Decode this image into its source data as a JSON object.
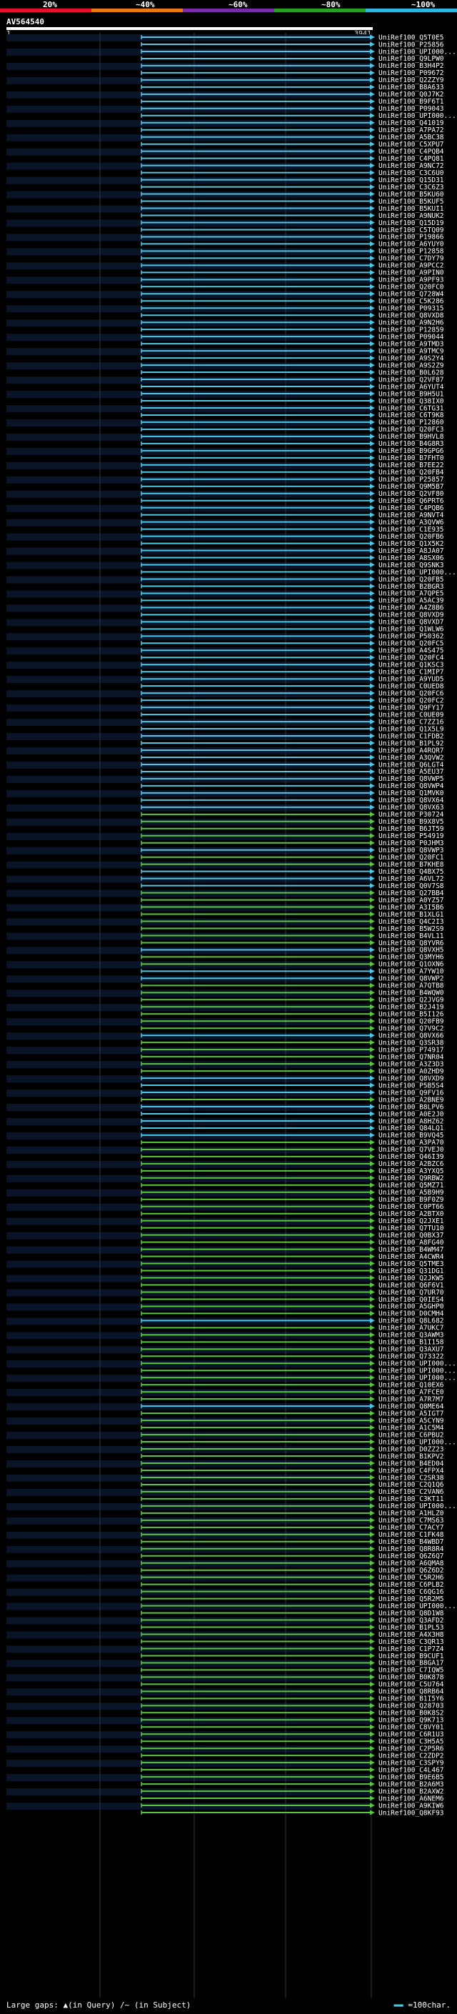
{
  "legend": {
    "items": [
      {
        "label": "20%",
        "color": "#e8102a"
      },
      {
        "label": "~40%",
        "color": "#e87a10"
      },
      {
        "label": "~60%",
        "color": "#7a2ba8"
      },
      {
        "label": "~80%",
        "color": "#28a020"
      },
      {
        "label": "~100%",
        "color": "#2ab8e0"
      }
    ]
  },
  "query": {
    "title": "AV564540",
    "start": "1",
    "end": "3941"
  },
  "footer": {
    "left_label": "Large gaps:",
    "in_query": "(in Query)",
    "in_subject": "(in Subject)",
    "scale_label": "=100char."
  },
  "colors": {
    "cyan": "#4cc9e6",
    "green": "#5ac83c",
    "grid": "#2a3a4a"
  },
  "hits": [
    {
      "label": "UniRef100_Q5T0E5",
      "color": "cyan"
    },
    {
      "label": "UniRef100_P25856",
      "color": "cyan"
    },
    {
      "label": "UniRef100_UPI000...",
      "color": "cyan"
    },
    {
      "label": "UniRef100_Q9LPW0",
      "color": "cyan"
    },
    {
      "label": "UniRef100_B3H4P2",
      "color": "cyan"
    },
    {
      "label": "UniRef100_P09672",
      "color": "cyan"
    },
    {
      "label": "UniRef100_Q2ZZY9",
      "color": "cyan"
    },
    {
      "label": "UniRef100_B8A633",
      "color": "cyan"
    },
    {
      "label": "UniRef100_Q0J7K2",
      "color": "cyan"
    },
    {
      "label": "UniRef100_B9F6T1",
      "color": "cyan"
    },
    {
      "label": "UniRef100_P09043",
      "color": "cyan"
    },
    {
      "label": "UniRef100_UPI000...",
      "color": "cyan"
    },
    {
      "label": "UniRef100_Q41019",
      "color": "cyan"
    },
    {
      "label": "UniRef100_A7PA72",
      "color": "cyan"
    },
    {
      "label": "UniRef100_A5BC38",
      "color": "cyan"
    },
    {
      "label": "UniRef100_C5XPU7",
      "color": "cyan"
    },
    {
      "label": "UniRef100_C4PQB4",
      "color": "cyan"
    },
    {
      "label": "UniRef100_C4PQ81",
      "color": "cyan"
    },
    {
      "label": "UniRef100_A9NC72",
      "color": "cyan"
    },
    {
      "label": "UniRef100_C3C6U0",
      "color": "cyan"
    },
    {
      "label": "UniRef100_Q15D31",
      "color": "cyan"
    },
    {
      "label": "UniRef100_C3C6Z3",
      "color": "cyan"
    },
    {
      "label": "UniRef100_B5KU60",
      "color": "cyan"
    },
    {
      "label": "UniRef100_B5KUF5",
      "color": "cyan"
    },
    {
      "label": "UniRef100_B5KUI1",
      "color": "cyan"
    },
    {
      "label": "UniRef100_A9NUK2",
      "color": "cyan"
    },
    {
      "label": "UniRef100_Q15D19",
      "color": "cyan"
    },
    {
      "label": "UniRef100_C5TQ09",
      "color": "cyan"
    },
    {
      "label": "UniRef100_P19866",
      "color": "cyan"
    },
    {
      "label": "UniRef100_A6YUY0",
      "color": "cyan"
    },
    {
      "label": "UniRef100_P12858",
      "color": "cyan"
    },
    {
      "label": "UniRef100_C7DY79",
      "color": "cyan"
    },
    {
      "label": "UniRef100_A9PCC2",
      "color": "cyan"
    },
    {
      "label": "UniRef100_A9PIN0",
      "color": "cyan"
    },
    {
      "label": "UniRef100_A9PF93",
      "color": "cyan"
    },
    {
      "label": "UniRef100_Q20FC0",
      "color": "cyan"
    },
    {
      "label": "UniRef100_Q728W4",
      "color": "cyan"
    },
    {
      "label": "UniRef100_C5K286",
      "color": "cyan"
    },
    {
      "label": "UniRef100_P09315",
      "color": "cyan"
    },
    {
      "label": "UniRef100_Q8VXD8",
      "color": "cyan"
    },
    {
      "label": "UniRef100_A9N2H6",
      "color": "cyan"
    },
    {
      "label": "UniRef100_P12859",
      "color": "cyan"
    },
    {
      "label": "UniRef100_P09044",
      "color": "cyan"
    },
    {
      "label": "UniRef100_A9TMD3",
      "color": "cyan"
    },
    {
      "label": "UniRef100_A9TMC9",
      "color": "cyan"
    },
    {
      "label": "UniRef100_A9S2Y4",
      "color": "cyan"
    },
    {
      "label": "UniRef100_A9S2Z9",
      "color": "cyan"
    },
    {
      "label": "UniRef100_B0L628",
      "color": "cyan"
    },
    {
      "label": "UniRef100_Q2VF87",
      "color": "cyan"
    },
    {
      "label": "UniRef100_A6YUT4",
      "color": "cyan"
    },
    {
      "label": "UniRef100_B9H5U1",
      "color": "cyan"
    },
    {
      "label": "UniRef100_Q38IX0",
      "color": "cyan"
    },
    {
      "label": "UniRef100_C6TG31",
      "color": "cyan"
    },
    {
      "label": "UniRef100_C6T9K8",
      "color": "cyan"
    },
    {
      "label": "UniRef100_P12860",
      "color": "cyan"
    },
    {
      "label": "UniRef100_Q20FC3",
      "color": "cyan"
    },
    {
      "label": "UniRef100_B9HVL8",
      "color": "cyan"
    },
    {
      "label": "UniRef100_B4G8R3",
      "color": "cyan"
    },
    {
      "label": "UniRef100_B9GPG6",
      "color": "cyan"
    },
    {
      "label": "UniRef100_B7FHT0",
      "color": "cyan"
    },
    {
      "label": "UniRef100_B7EE22",
      "color": "cyan"
    },
    {
      "label": "UniRef100_Q20FB4",
      "color": "cyan"
    },
    {
      "label": "UniRef100_P25857",
      "color": "cyan"
    },
    {
      "label": "UniRef100_Q9M5B7",
      "color": "cyan"
    },
    {
      "label": "UniRef100_Q2VF80",
      "color": "cyan"
    },
    {
      "label": "UniRef100_Q6PRT6",
      "color": "cyan"
    },
    {
      "label": "UniRef100_C4PQB6",
      "color": "cyan"
    },
    {
      "label": "UniRef100_A9NVT4",
      "color": "cyan"
    },
    {
      "label": "UniRef100_A3QVW6",
      "color": "cyan"
    },
    {
      "label": "UniRef100_C1E935",
      "color": "cyan"
    },
    {
      "label": "UniRef100_Q20FB6",
      "color": "cyan"
    },
    {
      "label": "UniRef100_Q1X5K2",
      "color": "cyan"
    },
    {
      "label": "UniRef100_A8JA07",
      "color": "cyan"
    },
    {
      "label": "UniRef100_A8SX06",
      "color": "cyan"
    },
    {
      "label": "UniRef100_Q9SNK3",
      "color": "cyan"
    },
    {
      "label": "UniRef100_UPI000...",
      "color": "cyan"
    },
    {
      "label": "UniRef100_Q20FB5",
      "color": "cyan"
    },
    {
      "label": "UniRef100_B2BGR3",
      "color": "cyan"
    },
    {
      "label": "UniRef100_A7QPE5",
      "color": "cyan"
    },
    {
      "label": "UniRef100_A5AC39",
      "color": "cyan"
    },
    {
      "label": "UniRef100_A4Z8B6",
      "color": "cyan"
    },
    {
      "label": "UniRef100_Q8VXD9",
      "color": "cyan"
    },
    {
      "label": "UniRef100_Q8VXD7",
      "color": "cyan"
    },
    {
      "label": "UniRef100_Q1WLW6",
      "color": "cyan"
    },
    {
      "label": "UniRef100_P50362",
      "color": "cyan"
    },
    {
      "label": "UniRef100_Q20FC5",
      "color": "cyan"
    },
    {
      "label": "UniRef100_A4S475",
      "color": "cyan"
    },
    {
      "label": "UniRef100_Q20FC4",
      "color": "cyan"
    },
    {
      "label": "UniRef100_Q1KSC3",
      "color": "cyan"
    },
    {
      "label": "UniRef100_C1MIP7",
      "color": "cyan"
    },
    {
      "label": "UniRef100_A9YUD5",
      "color": "cyan"
    },
    {
      "label": "UniRef100_C0UED8",
      "color": "cyan"
    },
    {
      "label": "UniRef100_Q20FC6",
      "color": "cyan"
    },
    {
      "label": "UniRef100_Q20FC2",
      "color": "cyan"
    },
    {
      "label": "UniRef100_Q9FY17",
      "color": "cyan"
    },
    {
      "label": "UniRef100_C0UE09",
      "color": "cyan"
    },
    {
      "label": "UniRef100_C7ZZ16",
      "color": "cyan"
    },
    {
      "label": "UniRef100_Q1X5L9",
      "color": "cyan"
    },
    {
      "label": "UniRef100_C1FDB2",
      "color": "cyan"
    },
    {
      "label": "UniRef100_B1PL92",
      "color": "cyan"
    },
    {
      "label": "UniRef100_A4RQR7",
      "color": "cyan"
    },
    {
      "label": "UniRef100_A3QVW2",
      "color": "cyan"
    },
    {
      "label": "UniRef100_Q6LGT4",
      "color": "cyan"
    },
    {
      "label": "UniRef100_A5EU37",
      "color": "cyan"
    },
    {
      "label": "UniRef100_Q8VWP5",
      "color": "cyan"
    },
    {
      "label": "UniRef100_Q8VWP4",
      "color": "cyan"
    },
    {
      "label": "UniRef100_Q1MVK0",
      "color": "cyan"
    },
    {
      "label": "UniRef100_Q8VX64",
      "color": "cyan"
    },
    {
      "label": "UniRef100_Q8VX63",
      "color": "cyan"
    },
    {
      "label": "UniRef100_P30724",
      "color": "green"
    },
    {
      "label": "UniRef100_B9X8V5",
      "color": "green"
    },
    {
      "label": "UniRef100_B6JT59",
      "color": "green"
    },
    {
      "label": "UniRef100_P54919",
      "color": "green"
    },
    {
      "label": "UniRef100_P0JHM3",
      "color": "green"
    },
    {
      "label": "UniRef100_Q8VWP3",
      "color": "cyan"
    },
    {
      "label": "UniRef100_Q20FC1",
      "color": "green"
    },
    {
      "label": "UniRef100_B7KHE8",
      "color": "green"
    },
    {
      "label": "UniRef100_Q4BX75",
      "color": "cyan"
    },
    {
      "label": "UniRef100_A6VL72",
      "color": "cyan"
    },
    {
      "label": "UniRef100_Q0V7S8",
      "color": "cyan"
    },
    {
      "label": "UniRef100_Q27BB4",
      "color": "green"
    },
    {
      "label": "UniRef100_A0YZ57",
      "color": "green"
    },
    {
      "label": "UniRef100_A3I5B6",
      "color": "green"
    },
    {
      "label": "UniRef100_B1XLG1",
      "color": "green"
    },
    {
      "label": "UniRef100_Q4C2I3",
      "color": "green"
    },
    {
      "label": "UniRef100_B5W2S9",
      "color": "green"
    },
    {
      "label": "UniRef100_B4VL11",
      "color": "green"
    },
    {
      "label": "UniRef100_Q8YVR6",
      "color": "green"
    },
    {
      "label": "UniRef100_Q8VXH5",
      "color": "cyan"
    },
    {
      "label": "UniRef100_Q3MYH6",
      "color": "green"
    },
    {
      "label": "UniRef100_Q1OXN6",
      "color": "green"
    },
    {
      "label": "UniRef100_A7YW10",
      "color": "cyan"
    },
    {
      "label": "UniRef100_Q8VWP2",
      "color": "cyan"
    },
    {
      "label": "UniRef100_A7QTB8",
      "color": "green"
    },
    {
      "label": "UniRef100_B4WQW0",
      "color": "green"
    },
    {
      "label": "UniRef100_Q2JVG9",
      "color": "green"
    },
    {
      "label": "UniRef100_B2J419",
      "color": "green"
    },
    {
      "label": "UniRef100_B5I126",
      "color": "green"
    },
    {
      "label": "UniRef100_Q20FB9",
      "color": "green"
    },
    {
      "label": "UniRef100_Q7V9C2",
      "color": "green"
    },
    {
      "label": "UniRef100_Q8VX66",
      "color": "cyan"
    },
    {
      "label": "UniRef100_Q3SR38",
      "color": "green"
    },
    {
      "label": "UniRef100_P74917",
      "color": "green"
    },
    {
      "label": "UniRef100_Q7NR04",
      "color": "green"
    },
    {
      "label": "UniRef100_A3Z3D3",
      "color": "green"
    },
    {
      "label": "UniRef100_A0ZHD9",
      "color": "green"
    },
    {
      "label": "UniRef100_Q8VXD9",
      "color": "cyan"
    },
    {
      "label": "UniRef100_P5B5S4",
      "color": "cyan"
    },
    {
      "label": "UniRef100_Q9FV16",
      "color": "cyan"
    },
    {
      "label": "UniRef100_A2BNE9",
      "color": "green"
    },
    {
      "label": "UniRef100_B8LPV6",
      "color": "cyan"
    },
    {
      "label": "UniRef100_A0E2J0",
      "color": "cyan"
    },
    {
      "label": "UniRef100_A8HZ62",
      "color": "cyan"
    },
    {
      "label": "UniRef100_Q84LQ1",
      "color": "cyan"
    },
    {
      "label": "UniRef100_B9VQ45",
      "color": "cyan"
    },
    {
      "label": "UniRef100_A3PA70",
      "color": "green"
    },
    {
      "label": "UniRef100_Q7VEJ0",
      "color": "green"
    },
    {
      "label": "UniRef100_Q46I39",
      "color": "green"
    },
    {
      "label": "UniRef100_A2BZC6",
      "color": "green"
    },
    {
      "label": "UniRef100_A3YXQ5",
      "color": "green"
    },
    {
      "label": "UniRef100_Q9RBW2",
      "color": "green"
    },
    {
      "label": "UniRef100_Q5MZ71",
      "color": "green"
    },
    {
      "label": "UniRef100_A5B9H9",
      "color": "green"
    },
    {
      "label": "UniRef100_B9F0Z9",
      "color": "green"
    },
    {
      "label": "UniRef100_C0PT66",
      "color": "green"
    },
    {
      "label": "UniRef100_A2BTX0",
      "color": "green"
    },
    {
      "label": "UniRef100_Q2JXE1",
      "color": "green"
    },
    {
      "label": "UniRef100_Q7TU10",
      "color": "green"
    },
    {
      "label": "UniRef100_Q0BX37",
      "color": "green"
    },
    {
      "label": "UniRef100_A8FG40",
      "color": "green"
    },
    {
      "label": "UniRef100_B4WM47",
      "color": "green"
    },
    {
      "label": "UniRef100_A4CWR4",
      "color": "green"
    },
    {
      "label": "UniRef100_Q5TME3",
      "color": "green"
    },
    {
      "label": "UniRef100_Q31DG1",
      "color": "green"
    },
    {
      "label": "UniRef100_Q2JKW5",
      "color": "green"
    },
    {
      "label": "UniRef100_Q6F6V1",
      "color": "green"
    },
    {
      "label": "UniRef100_Q7UR70",
      "color": "green"
    },
    {
      "label": "UniRef100_Q0IES4",
      "color": "green"
    },
    {
      "label": "UniRef100_A5GHP0",
      "color": "green"
    },
    {
      "label": "UniRef100_D0CMH4",
      "color": "green"
    },
    {
      "label": "UniRef100_Q8L682",
      "color": "cyan"
    },
    {
      "label": "UniRef100_A7UKC7",
      "color": "green"
    },
    {
      "label": "UniRef100_Q3AWM3",
      "color": "green"
    },
    {
      "label": "UniRef100_B1I158",
      "color": "green"
    },
    {
      "label": "UniRef100_Q3AXU7",
      "color": "green"
    },
    {
      "label": "UniRef100_Q73322",
      "color": "green"
    },
    {
      "label": "UniRef100_UPI000...",
      "color": "green"
    },
    {
      "label": "UniRef100_UPI000...",
      "color": "green"
    },
    {
      "label": "UniRef100_UPI000...",
      "color": "green"
    },
    {
      "label": "UniRef100_Q10EX6",
      "color": "green"
    },
    {
      "label": "UniRef100_A7FCE0",
      "color": "green"
    },
    {
      "label": "UniRef100_A7R7M7",
      "color": "green"
    },
    {
      "label": "UniRef100_Q8ME64",
      "color": "cyan"
    },
    {
      "label": "UniRef100_A5IGT7",
      "color": "green"
    },
    {
      "label": "UniRef100_A5CYN9",
      "color": "green"
    },
    {
      "label": "UniRef100_A1C5M4",
      "color": "green"
    },
    {
      "label": "UniRef100_C6PBU2",
      "color": "green"
    },
    {
      "label": "UniRef100_UPI000...",
      "color": "green"
    },
    {
      "label": "UniRef100_D0ZZ23",
      "color": "green"
    },
    {
      "label": "UniRef100_B1KPV2",
      "color": "green"
    },
    {
      "label": "UniRef100_B4ED04",
      "color": "green"
    },
    {
      "label": "UniRef100_C4FPX4",
      "color": "green"
    },
    {
      "label": "UniRef100_C2SR38",
      "color": "green"
    },
    {
      "label": "UniRef100_C2Q1Q6",
      "color": "green"
    },
    {
      "label": "UniRef100_C2VAN6",
      "color": "green"
    },
    {
      "label": "UniRef100_C3KT11",
      "color": "green"
    },
    {
      "label": "UniRef100_UPI000...",
      "color": "green"
    },
    {
      "label": "UniRef100_A1HLZ0",
      "color": "green"
    },
    {
      "label": "UniRef100_C7MS63",
      "color": "green"
    },
    {
      "label": "UniRef100_C7ACY7",
      "color": "green"
    },
    {
      "label": "UniRef100_C1FK48",
      "color": "green"
    },
    {
      "label": "UniRef100_B4WBD7",
      "color": "green"
    },
    {
      "label": "UniRef100_Q8R8R4",
      "color": "green"
    },
    {
      "label": "UniRef100_Q6Z6Q7",
      "color": "green"
    },
    {
      "label": "UniRef100_A6QMA8",
      "color": "green"
    },
    {
      "label": "UniRef100_Q6Z6D2",
      "color": "green"
    },
    {
      "label": "UniRef100_C5R2H6",
      "color": "green"
    },
    {
      "label": "UniRef100_C6PLB2",
      "color": "green"
    },
    {
      "label": "UniRef100_C6QG16",
      "color": "green"
    },
    {
      "label": "UniRef100_Q5R2M5",
      "color": "green"
    },
    {
      "label": "UniRef100_UPI000...",
      "color": "green"
    },
    {
      "label": "UniRef100_Q8D1W8",
      "color": "green"
    },
    {
      "label": "UniRef100_Q3AFD2",
      "color": "green"
    },
    {
      "label": "UniRef100_B1PL53",
      "color": "green"
    },
    {
      "label": "UniRef100_A4X3H8",
      "color": "green"
    },
    {
      "label": "UniRef100_C3QR13",
      "color": "green"
    },
    {
      "label": "UniRef100_C1P7Z4",
      "color": "green"
    },
    {
      "label": "UniRef100_B9CUF1",
      "color": "green"
    },
    {
      "label": "UniRef100_B8GA17",
      "color": "green"
    },
    {
      "label": "UniRef100_C7IQW5",
      "color": "green"
    },
    {
      "label": "UniRef100_B0K878",
      "color": "green"
    },
    {
      "label": "UniRef100_C5U764",
      "color": "green"
    },
    {
      "label": "UniRef100_Q8RB64",
      "color": "green"
    },
    {
      "label": "UniRef100_B1I5Y6",
      "color": "green"
    },
    {
      "label": "UniRef100_Q28703",
      "color": "green"
    },
    {
      "label": "UniRef100_B0K8S2",
      "color": "green"
    },
    {
      "label": "UniRef100_Q9K713",
      "color": "green"
    },
    {
      "label": "UniRef100_C8VY01",
      "color": "green"
    },
    {
      "label": "UniRef100_C6R1U3",
      "color": "green"
    },
    {
      "label": "UniRef100_C3H5A5",
      "color": "green"
    },
    {
      "label": "UniRef100_C2P5R6",
      "color": "green"
    },
    {
      "label": "UniRef100_C2ZDP2",
      "color": "green"
    },
    {
      "label": "UniRef100_C3SPY9",
      "color": "green"
    },
    {
      "label": "UniRef100_C4L467",
      "color": "green"
    },
    {
      "label": "UniRef100_B9E6B5",
      "color": "green"
    },
    {
      "label": "UniRef100_B2A6M3",
      "color": "green"
    },
    {
      "label": "UniRef100_B2AXW2",
      "color": "green"
    },
    {
      "label": "UniRef100_A6NEM6",
      "color": "green"
    },
    {
      "label": "UniRef100_A9KIW6",
      "color": "green"
    },
    {
      "label": "UniRef100_Q8KF93",
      "color": "green"
    }
  ]
}
